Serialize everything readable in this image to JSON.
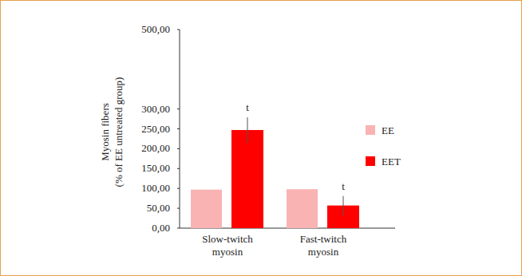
{
  "chart_data": {
    "type": "bar",
    "ylabel": [
      "Myosin fibers",
      "(% of EE untreated group)"
    ],
    "categories": [
      "Slow-twitch myosin",
      "Fast-twitch myosin"
    ],
    "series": [
      {
        "name": "EE",
        "color": "#f9b3b3",
        "values": [
          97,
          98
        ]
      },
      {
        "name": "EET",
        "color": "#ff0000",
        "values": [
          247,
          57
        ],
        "errors": [
          32,
          24
        ]
      }
    ],
    "annotations": [
      {
        "text": "t",
        "category": 0,
        "series": 1
      },
      {
        "text": "t",
        "category": 1,
        "series": 1
      }
    ],
    "ylim": [
      0,
      500
    ],
    "yticks": [
      {
        "value": 0,
        "label": "0,00"
      },
      {
        "value": 50,
        "label": "50,00"
      },
      {
        "value": 100,
        "label": "100,00"
      },
      {
        "value": 150,
        "label": "150,00"
      },
      {
        "value": 200,
        "label": "200,00"
      },
      {
        "value": 250,
        "label": "250,00"
      },
      {
        "value": 300,
        "label": "300,00"
      },
      {
        "value": 500,
        "label": "500,00"
      }
    ],
    "grid": false,
    "legend": "right"
  }
}
